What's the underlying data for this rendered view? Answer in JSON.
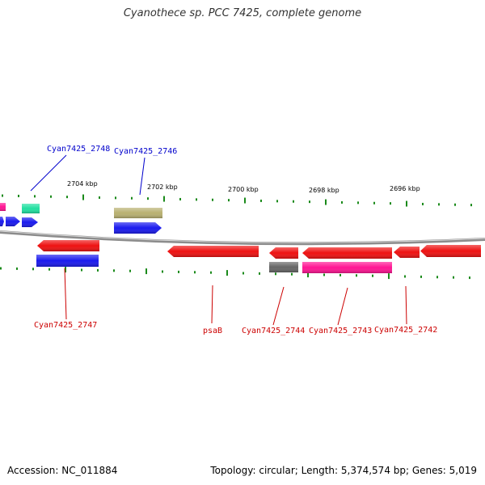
{
  "title": "Cyanothece sp. PCC 7425, complete genome",
  "footer": {
    "accession": "Accession: NC_011884",
    "stats": "Topology: circular; Length: 5,374,574 bp; Genes: 5,019"
  },
  "colors": {
    "backbone": "#8c8c8c",
    "label_plus": "#0000cc",
    "label_minus": "#cc0000",
    "tick": "#1a8a1a"
  },
  "kbp_ticks": [
    {
      "label": "2704 kbp"
    },
    {
      "label": "2702 kbp"
    },
    {
      "label": "2700 kbp"
    },
    {
      "label": "2698 kbp"
    },
    {
      "label": "2696 kbp"
    }
  ],
  "labeled_genes": [
    {
      "name": "Cyan7425_2748",
      "strand": "+"
    },
    {
      "name": "Cyan7425_2746",
      "strand": "+"
    },
    {
      "name": "Cyan7425_2747",
      "strand": "-"
    },
    {
      "name": "psaB",
      "strand": "-"
    },
    {
      "name": "Cyan7425_2744",
      "strand": "-"
    },
    {
      "name": "Cyan7425_2743",
      "strand": "-"
    },
    {
      "name": "Cyan7425_2742",
      "strand": "-"
    }
  ],
  "features": [
    {
      "color": "#ff1493"
    },
    {
      "color": "#1a1aee"
    },
    {
      "color": "#1a1aee"
    },
    {
      "color": "#1a1aee"
    },
    {
      "color": "#20e0a0"
    },
    {
      "color": "#b8b070"
    },
    {
      "color": "#1a1aee"
    },
    {
      "color": "#ee1111"
    },
    {
      "color": "#1a1aee"
    },
    {
      "color": "#ee1111"
    },
    {
      "color": "#ee1111"
    },
    {
      "color": "#666666"
    },
    {
      "color": "#ee1111"
    },
    {
      "color": "#ff1493"
    },
    {
      "color": "#ee1111"
    },
    {
      "color": "#ee1111"
    }
  ]
}
